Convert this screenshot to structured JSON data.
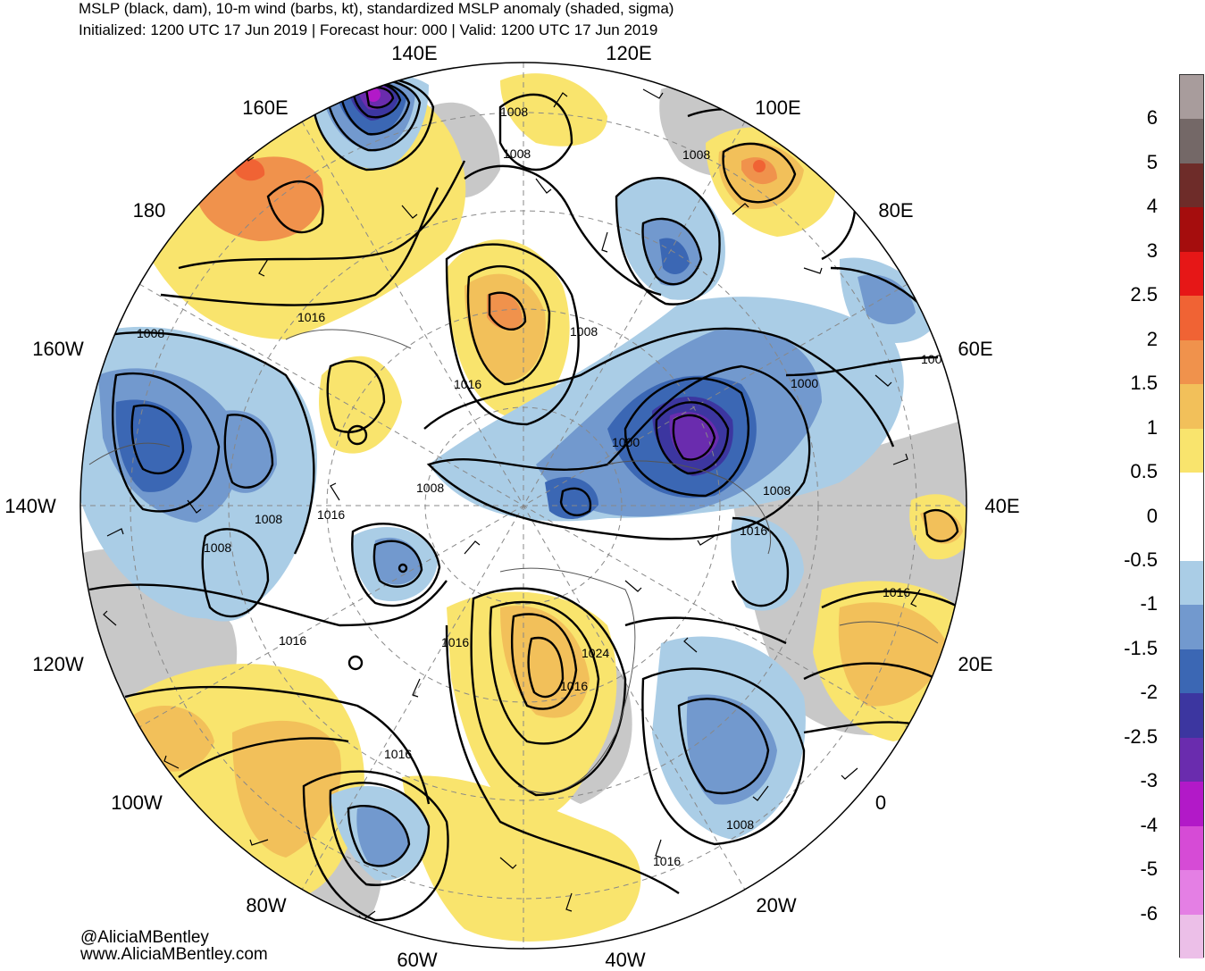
{
  "header": {
    "title": "MSLP (black, dam), 10-m wind (barbs, kt), standardized MSLP anomaly (shaded, sigma)",
    "subtitle": "Initialized: 1200 UTC 17 Jun 2019 | Forecast hour: 000 | Valid: 1200 UTC 17 Jun 2019"
  },
  "longitude_labels": [
    {
      "id": "lon-140e",
      "text": "140E"
    },
    {
      "id": "lon-120e",
      "text": "120E"
    },
    {
      "id": "lon-160e",
      "text": "160E"
    },
    {
      "id": "lon-100e",
      "text": "100E"
    },
    {
      "id": "lon-180",
      "text": "180"
    },
    {
      "id": "lon-80e",
      "text": "80E"
    },
    {
      "id": "lon-160w",
      "text": "160W"
    },
    {
      "id": "lon-60e",
      "text": "60E"
    },
    {
      "id": "lon-140w",
      "text": "140W"
    },
    {
      "id": "lon-40e",
      "text": "40E"
    },
    {
      "id": "lon-120w",
      "text": "120W"
    },
    {
      "id": "lon-20e",
      "text": "20E"
    },
    {
      "id": "lon-100w",
      "text": "100W"
    },
    {
      "id": "lon-0",
      "text": "0"
    },
    {
      "id": "lon-80w",
      "text": "80W"
    },
    {
      "id": "lon-20w",
      "text": "20W"
    },
    {
      "id": "lon-60w",
      "text": "60W"
    },
    {
      "id": "lon-40w",
      "text": "40W"
    }
  ],
  "contour_labels": [
    {
      "id": "c-1008-a",
      "text": "1008"
    },
    {
      "id": "c-1008-b",
      "text": "1008"
    },
    {
      "id": "c-1008-c",
      "text": "1008"
    },
    {
      "id": "c-1016-a",
      "text": "1016"
    },
    {
      "id": "c-1008-d",
      "text": "1008"
    },
    {
      "id": "c-1008-e",
      "text": "1008"
    },
    {
      "id": "c-1016-b",
      "text": "1016"
    },
    {
      "id": "c-1008-f",
      "text": "1008"
    },
    {
      "id": "c-1000-a",
      "text": "1000"
    },
    {
      "id": "c-1000-b",
      "text": "1000"
    },
    {
      "id": "c-1008-g",
      "text": "1008"
    },
    {
      "id": "c-1008-h",
      "text": "1008"
    },
    {
      "id": "c-1016-c",
      "text": "1016"
    },
    {
      "id": "c-1008-i",
      "text": "1008"
    },
    {
      "id": "c-1016-d",
      "text": "1016"
    },
    {
      "id": "c-1008-j",
      "text": "1008"
    },
    {
      "id": "c-1016-e",
      "text": "1016"
    },
    {
      "id": "c-1016-f",
      "text": "1016"
    },
    {
      "id": "c-1016-g",
      "text": "1016"
    },
    {
      "id": "c-1024",
      "text": "1024"
    },
    {
      "id": "c-1016-h",
      "text": "1016"
    },
    {
      "id": "c-1016-i",
      "text": "1016"
    },
    {
      "id": "c-1008-k",
      "text": "1008"
    },
    {
      "id": "c-1016-j",
      "text": "1016"
    }
  ],
  "colorbar": {
    "levels": [
      "6",
      "5",
      "4",
      "3",
      "2.5",
      "2",
      "1.5",
      "1",
      "0.5",
      "0",
      "-0.5",
      "-1",
      "-1.5",
      "-2",
      "-2.5",
      "-3",
      "-4",
      "-5",
      "-6"
    ],
    "colors": [
      "#a89c9c",
      "#746867",
      "#6e2c29",
      "#a50d0d",
      "#e61717",
      "#f06334",
      "#f0924c",
      "#f2c05a",
      "#f9e46d",
      "#ffffff",
      "#ffffff",
      "#aacde6",
      "#7299ce",
      "#3b67b4",
      "#3c36a0",
      "#6a2cae",
      "#b219c8",
      "#d64bd6",
      "#e47fe4",
      "#ecbfe8"
    ]
  },
  "colors": {
    "land_gray": "#c8c8c8",
    "anomaly_pos_1": "#f9e46d",
    "anomaly_pos_2": "#f2c05a",
    "anomaly_pos_3": "#f0924c",
    "anomaly_pos_4": "#f06334",
    "anomaly_neg_1": "#aacde6",
    "anomaly_neg_2": "#7299ce",
    "anomaly_neg_3": "#3b67b4",
    "anomaly_neg_4": "#3c36a0",
    "anomaly_neg_5": "#6a2cae",
    "anomaly_neg_6": "#b219c8"
  },
  "credits": {
    "handle": "@AliciaMBentley",
    "website": "www.AliciaMBentley.com"
  }
}
